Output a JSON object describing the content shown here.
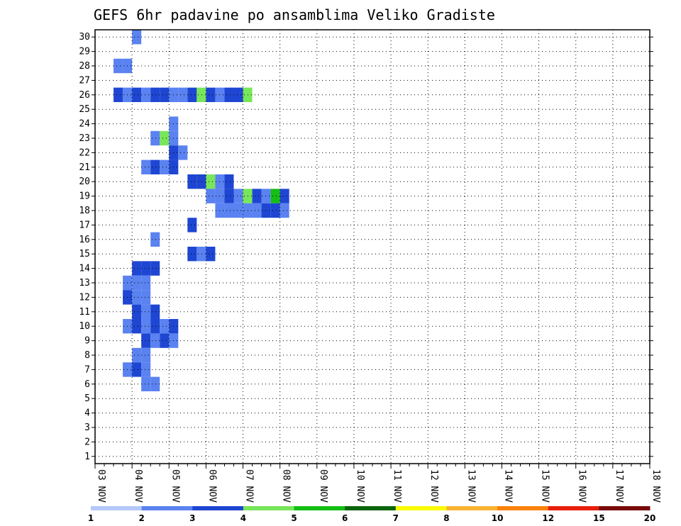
{
  "chart_data": {
    "type": "heatmap",
    "title": "GEFS 6hr padavine po ansamblima Veliko Gradiste",
    "x_tick_labels": [
      "03 NOV",
      "04 NOV",
      "05 NOV",
      "06 NOV",
      "07 NOV",
      "08 NOV",
      "09 NOV",
      "10 NOV",
      "11 NOV",
      "12 NOV",
      "13 NOV",
      "14 NOV",
      "15 NOV",
      "16 NOV",
      "17 NOV",
      "18 NOV"
    ],
    "y_tick_labels": [
      "1",
      "2",
      "3",
      "4",
      "5",
      "6",
      "7",
      "8",
      "9",
      "10",
      "11",
      "12",
      "13",
      "14",
      "15",
      "16",
      "17",
      "18",
      "19",
      "20",
      "21",
      "22",
      "23",
      "24",
      "25",
      "26",
      "27",
      "28",
      "29",
      "30"
    ],
    "x_unit": "6-hour step since 03 NOV 00z",
    "y_unit": "ensemble member",
    "legend_colors": [
      "#b4c8fa",
      "#5a82f0",
      "#1e46d2",
      "#78e65a",
      "#14be14",
      "#0a640a",
      "#fafa00",
      "#fab432",
      "#fa820a",
      "#e61e0a",
      "#780a0a"
    ],
    "legend_labels": [
      "1",
      "2",
      "3",
      "4",
      "5",
      "6",
      "7",
      "8",
      "10",
      "12",
      "15",
      "20"
    ],
    "cells": [
      [
        4,
        30,
        1
      ],
      [
        2,
        28,
        1
      ],
      [
        3,
        28,
        1
      ],
      [
        2,
        26,
        2
      ],
      [
        3,
        26,
        1
      ],
      [
        4,
        26,
        2
      ],
      [
        5,
        26,
        1
      ],
      [
        6,
        26,
        2
      ],
      [
        7,
        26,
        2
      ],
      [
        8,
        26,
        1
      ],
      [
        9,
        26,
        1
      ],
      [
        10,
        26,
        2
      ],
      [
        11,
        26,
        3
      ],
      [
        12,
        26,
        2
      ],
      [
        13,
        26,
        1
      ],
      [
        14,
        26,
        2
      ],
      [
        15,
        26,
        2
      ],
      [
        16,
        26,
        3
      ],
      [
        8,
        24,
        1
      ],
      [
        6,
        23,
        1
      ],
      [
        7,
        23,
        3
      ],
      [
        8,
        23,
        1
      ],
      [
        8,
        22,
        2
      ],
      [
        9,
        22,
        1
      ],
      [
        5,
        21,
        1
      ],
      [
        6,
        21,
        2
      ],
      [
        7,
        21,
        1
      ],
      [
        8,
        21,
        2
      ],
      [
        10,
        20,
        2
      ],
      [
        11,
        20,
        2
      ],
      [
        12,
        20,
        3
      ],
      [
        13,
        20,
        1
      ],
      [
        14,
        20,
        2
      ],
      [
        12,
        19,
        1
      ],
      [
        13,
        19,
        1
      ],
      [
        14,
        19,
        2
      ],
      [
        15,
        19,
        1
      ],
      [
        16,
        19,
        3
      ],
      [
        17,
        19,
        2
      ],
      [
        18,
        19,
        1
      ],
      [
        19,
        19,
        4
      ],
      [
        20,
        19,
        2
      ],
      [
        13,
        18,
        1
      ],
      [
        14,
        18,
        1
      ],
      [
        15,
        18,
        1
      ],
      [
        16,
        18,
        1
      ],
      [
        17,
        18,
        1
      ],
      [
        18,
        18,
        2
      ],
      [
        19,
        18,
        2
      ],
      [
        20,
        18,
        1
      ],
      [
        10,
        17,
        2
      ],
      [
        6,
        16,
        1
      ],
      [
        10,
        15,
        2
      ],
      [
        11,
        15,
        1
      ],
      [
        12,
        15,
        2
      ],
      [
        4,
        14,
        2
      ],
      [
        5,
        14,
        2
      ],
      [
        6,
        14,
        2
      ],
      [
        3,
        13,
        1
      ],
      [
        4,
        13,
        1
      ],
      [
        5,
        13,
        1
      ],
      [
        3,
        12,
        2
      ],
      [
        4,
        12,
        1
      ],
      [
        5,
        12,
        1
      ],
      [
        4,
        11,
        2
      ],
      [
        5,
        11,
        1
      ],
      [
        6,
        11,
        2
      ],
      [
        3,
        10,
        1
      ],
      [
        4,
        10,
        2
      ],
      [
        5,
        10,
        1
      ],
      [
        6,
        10,
        2
      ],
      [
        7,
        10,
        1
      ],
      [
        8,
        10,
        2
      ],
      [
        5,
        9,
        2
      ],
      [
        6,
        9,
        1
      ],
      [
        7,
        9,
        2
      ],
      [
        8,
        9,
        1
      ],
      [
        4,
        8,
        1
      ],
      [
        5,
        8,
        1
      ],
      [
        3,
        7,
        1
      ],
      [
        4,
        7,
        2
      ],
      [
        5,
        7,
        1
      ],
      [
        5,
        6,
        1
      ],
      [
        6,
        6,
        1
      ]
    ]
  }
}
